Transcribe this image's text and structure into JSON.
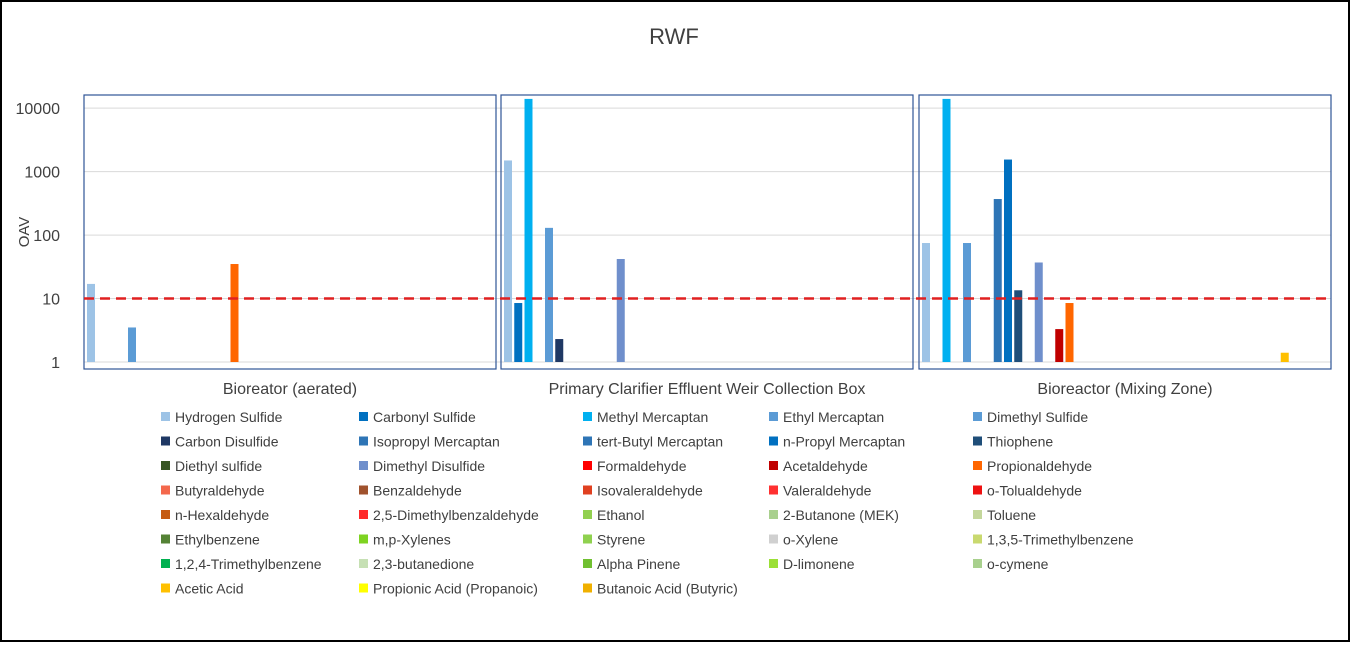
{
  "chart_data": {
    "type": "bar",
    "title": "RWF",
    "ylabel": "OAV",
    "yscale": "log",
    "ylim": [
      1,
      15000
    ],
    "yticks": [
      "1",
      "10",
      "100",
      "1000",
      "10000"
    ],
    "threshold": {
      "value": 10,
      "color": "#e02020",
      "style": "dashed"
    },
    "grid": true,
    "legend_position": "bottom",
    "panels": [
      {
        "name": "Bioreator (aerated)",
        "values": {
          "Hydrogen Sulfide": 17,
          "Dimethyl Sulfide": 3.5,
          "Propionaldehyde": 35
        }
      },
      {
        "name": "Primary Clarifier Effluent Weir Collection Box",
        "values": {
          "Hydrogen Sulfide": 1500,
          "Carbonyl Sulfide": 8.5,
          "Methyl Mercaptan": 14000,
          "Dimethyl Sulfide": 130,
          "Carbon Disulfide": 2.3,
          "Dimethyl Disulfide": 42
        }
      },
      {
        "name": "Bioreactor (Mixing Zone)",
        "values": {
          "Hydrogen Sulfide": 75,
          "Methyl Mercaptan": 14000,
          "Dimethyl Sulfide": 75,
          "tert-Butyl Mercaptan": 370,
          "n-Propyl Mercaptan": 1550,
          "Thiophene": 13.5,
          "Dimethyl Disulfide": 37,
          "Acetaldehyde": 3.3,
          "Propionaldehyde": 8.5,
          "Acetic Acid": 1.4
        }
      }
    ],
    "series": [
      {
        "name": "Hydrogen Sulfide",
        "color": "#9dc3e6"
      },
      {
        "name": "Carbonyl Sulfide",
        "color": "#0070c0"
      },
      {
        "name": "Methyl Mercaptan",
        "color": "#00b0f0"
      },
      {
        "name": "Ethyl Mercaptan",
        "color": "#5b9bd5"
      },
      {
        "name": "Dimethyl Sulfide",
        "color": "#5b9bd5"
      },
      {
        "name": "Carbon Disulfide",
        "color": "#1f3864"
      },
      {
        "name": "Isopropyl Mercaptan",
        "color": "#2e75b6"
      },
      {
        "name": "tert-Butyl Mercaptan",
        "color": "#2e75b6"
      },
      {
        "name": "n-Propyl Mercaptan",
        "color": "#0070c0"
      },
      {
        "name": "Thiophene",
        "color": "#1f4e79"
      },
      {
        "name": "Diethyl sulfide",
        "color": "#375623"
      },
      {
        "name": "Dimethyl Disulfide",
        "color": "#6f8fcc"
      },
      {
        "name": "Formaldehyde",
        "color": "#ff0000"
      },
      {
        "name": "Acetaldehyde",
        "color": "#c00000"
      },
      {
        "name": "Propionaldehyde",
        "color": "#ff6600"
      },
      {
        "name": "Butyraldehyde",
        "color": "#f4684c"
      },
      {
        "name": "Benzaldehyde",
        "color": "#a0522d"
      },
      {
        "name": "Isovaleraldehyde",
        "color": "#e04020"
      },
      {
        "name": "Valeraldehyde",
        "color": "#ff3030"
      },
      {
        "name": "o-Tolualdehyde",
        "color": "#ee1111"
      },
      {
        "name": "n-Hexaldehyde",
        "color": "#c55a11"
      },
      {
        "name": "2,5-Dimethylbenzaldehyde",
        "color": "#ff2a2a"
      },
      {
        "name": "Ethanol",
        "color": "#92d050"
      },
      {
        "name": "2-Butanone (MEK)",
        "color": "#a9d08e"
      },
      {
        "name": "Toluene",
        "color": "#c4d79b"
      },
      {
        "name": "Ethylbenzene",
        "color": "#548235"
      },
      {
        "name": "m,p-Xylenes",
        "color": "#7ed321"
      },
      {
        "name": "Styrene",
        "color": "#8fd14f"
      },
      {
        "name": "o-Xylene",
        "color": "#d0d0d0"
      },
      {
        "name": "1,3,5-Trimethylbenzene",
        "color": "#c9d96f"
      },
      {
        "name": "1,2,4-Trimethylbenzene",
        "color": "#00b050"
      },
      {
        "name": "2,3-butanedione",
        "color": "#c6e0b4"
      },
      {
        "name": "Alpha Pinene",
        "color": "#70c030"
      },
      {
        "name": "D-limonene",
        "color": "#9be036"
      },
      {
        "name": "o-cymene",
        "color": "#a8d08d"
      },
      {
        "name": "Acetic Acid",
        "color": "#ffc000"
      },
      {
        "name": "Propionic Acid (Propanoic)",
        "color": "#ffff00"
      },
      {
        "name": "Butanoic Acid (Butyric)",
        "color": "#f0b000"
      }
    ]
  }
}
